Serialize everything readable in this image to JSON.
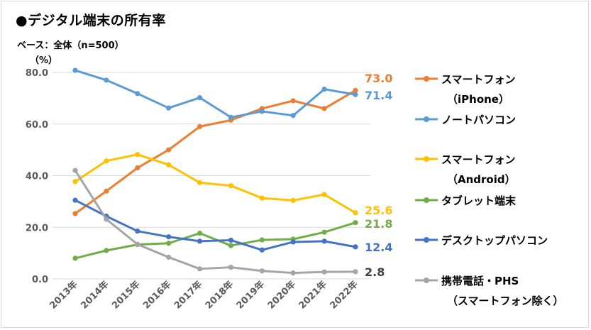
{
  "header": {
    "title": "●デジタル端末の所有率",
    "base": "ベース：全体（n=500）",
    "unit": "（%）"
  },
  "chart_data": {
    "type": "line",
    "title": "●デジタル端末の所有率",
    "ylabel": "（%）",
    "xlabel": "",
    "ylim": [
      0,
      80
    ],
    "yticks": [
      "0.0",
      "20.0",
      "40.0",
      "60.0",
      "80.0"
    ],
    "grid": true,
    "legend_position": "right",
    "categories": [
      "2013年",
      "2014年",
      "2015年",
      "2016年",
      "2017年",
      "2018年",
      "2019年",
      "2020年",
      "2021年",
      "2022年"
    ],
    "series": [
      {
        "name": "スマートフォン（iPhone）",
        "legend_lines": [
          "スマートフォン",
          "（iPhone）"
        ],
        "color": "#ED7D31",
        "end_label": "73.0",
        "values": [
          25.3,
          34.0,
          43.0,
          50.0,
          59.0,
          61.5,
          66.0,
          69.0,
          66.0,
          73.0
        ]
      },
      {
        "name": "ノートパソコン",
        "legend_lines": [
          "ノートパソコン"
        ],
        "color": "#5B9BD5",
        "end_label": "71.4",
        "values": [
          80.8,
          77.0,
          71.8,
          66.2,
          70.2,
          62.6,
          64.9,
          63.3,
          73.5,
          71.4
        ]
      },
      {
        "name": "スマートフォン（Android）",
        "legend_lines": [
          "スマートフォン",
          "（Android）"
        ],
        "color": "#FFC000",
        "end_label": "25.6",
        "values": [
          37.7,
          45.7,
          48.2,
          44.2,
          37.3,
          36.1,
          31.3,
          30.4,
          32.7,
          25.6
        ]
      },
      {
        "name": "タブレット端末",
        "legend_lines": [
          "タブレット端末"
        ],
        "color": "#70AD47",
        "end_label": "21.8",
        "values": [
          8.0,
          11.0,
          13.3,
          13.8,
          17.7,
          12.9,
          15.1,
          15.4,
          18.1,
          21.8
        ]
      },
      {
        "name": "デスクトップパソコン",
        "legend_lines": [
          "デスクトップパソコン"
        ],
        "color": "#4472C4",
        "end_label": "12.4",
        "values": [
          30.5,
          24.3,
          18.5,
          16.3,
          14.6,
          15.0,
          11.2,
          14.3,
          14.6,
          12.4
        ]
      },
      {
        "name": "携帯電話・PHS（スマートフォン除く）",
        "legend_lines": [
          "携帯電話・PHS",
          "（スマートフォン除く）"
        ],
        "color": "#A5A5A5",
        "end_label": "2.8",
        "values": [
          42.0,
          23.1,
          13.4,
          8.4,
          3.9,
          4.5,
          3.1,
          2.3,
          2.7,
          2.8
        ]
      }
    ]
  }
}
